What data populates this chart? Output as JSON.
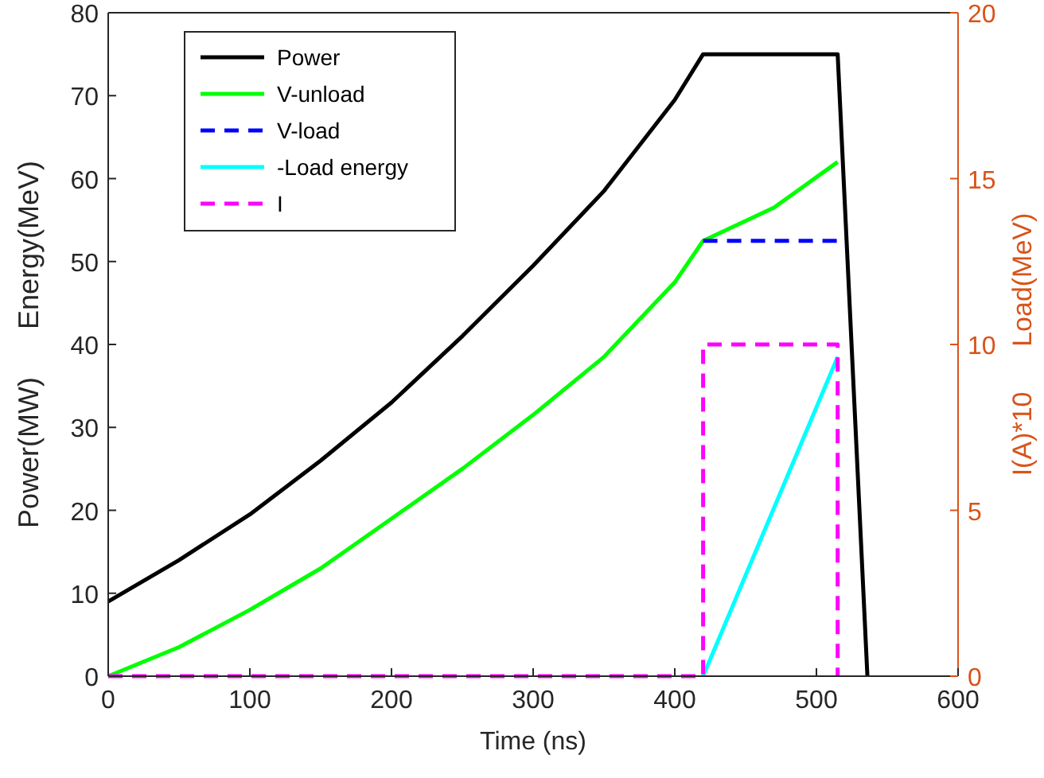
{
  "chart_data": {
    "type": "line",
    "xlabel": "Time (ns)",
    "ylabel": "Power(MW)      Energy(MeV)",
    "y2label": "I(A)*10      Load(MeV)",
    "xlim": [
      0,
      600
    ],
    "xticks": [
      0,
      100,
      200,
      300,
      400,
      500,
      600
    ],
    "ylim": [
      0,
      80
    ],
    "yticks": [
      0,
      10,
      20,
      30,
      40,
      50,
      60,
      70,
      80
    ],
    "y2lim": [
      0,
      20
    ],
    "y2ticks": [
      0,
      5,
      10,
      15,
      20
    ],
    "grid": false,
    "legend": "top left",
    "series": [
      {
        "name": "Power",
        "color": "#000000",
        "line_style": "solid",
        "x": [
          0,
          50,
          100,
          150,
          200,
          250,
          300,
          350,
          400,
          420,
          515,
          536
        ],
        "values": [
          9,
          14,
          19.5,
          26,
          33,
          41,
          49.5,
          58.5,
          69.5,
          75,
          75,
          0
        ]
      },
      {
        "name": "V-unload",
        "color": "#00ff00",
        "line_style": "solid",
        "x": [
          0,
          50,
          100,
          150,
          200,
          250,
          300,
          350,
          400,
          420,
          470,
          515
        ],
        "values": [
          0,
          3.5,
          8,
          13,
          19,
          25,
          31.5,
          38.5,
          47.5,
          52.5,
          56.5,
          62
        ]
      },
      {
        "name": "V-load",
        "color": "#0000ff",
        "line_style": "dashed",
        "x": [
          420,
          515
        ],
        "values": [
          52.5,
          52.5
        ]
      },
      {
        "name": "-Load energy",
        "color": "#00ffff",
        "line_style": "solid",
        "x": [
          420,
          515
        ],
        "values": [
          0,
          38.5
        ]
      },
      {
        "name": "I",
        "color": "#ff00ff",
        "line_style": "dashed",
        "axis": "y2",
        "x": [
          0,
          420,
          420,
          515,
          515
        ],
        "values": [
          0,
          0,
          10,
          10,
          0
        ]
      }
    ]
  }
}
